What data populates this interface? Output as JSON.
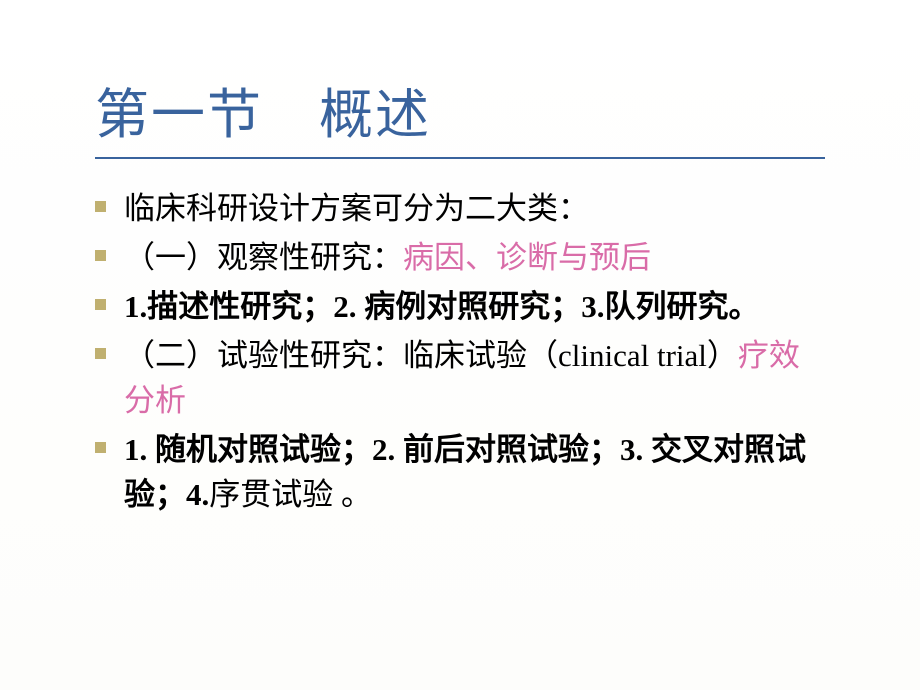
{
  "slide": {
    "title": "第一节　概述",
    "title_color": "#39639d",
    "title_fontsize": 54,
    "underline_color": "#39639d",
    "bullet_color": "#c0b070",
    "body_fontsize": 31,
    "text_color": "#000000",
    "highlight_color": "#d96ca8",
    "background_color": "#ffffff",
    "items": [
      {
        "segments": [
          {
            "text": "临床科研设计方案可分为二大类：",
            "style": "normal"
          }
        ]
      },
      {
        "segments": [
          {
            "text": "（一）观察性研究：",
            "style": "normal"
          },
          {
            "text": "病因、诊断与预后",
            "style": "pink"
          }
        ]
      },
      {
        "segments": [
          {
            "text": "1.描述性研究；",
            "style": "bold"
          },
          {
            "text": "2. ",
            "style": "bold"
          },
          {
            "text": "病例对照研究；",
            "style": "bold"
          },
          {
            "text": "3.",
            "style": "bold"
          },
          {
            "text": "队列研究。",
            "style": "bold"
          }
        ]
      },
      {
        "segments": [
          {
            "text": "（二）试验性研究：临床试验（",
            "style": "normal"
          },
          {
            "text": "clinical trial",
            "style": "normal"
          },
          {
            "text": "）",
            "style": "normal"
          },
          {
            "text": "疗效分析",
            "style": "pink"
          }
        ]
      },
      {
        "segments": [
          {
            "text": "1. 随机对照试验；2. 前后对照试验；3. 交叉对照试验；4.",
            "style": "bold"
          },
          {
            "text": "序贯试验 。",
            "style": "normal"
          }
        ]
      }
    ]
  }
}
